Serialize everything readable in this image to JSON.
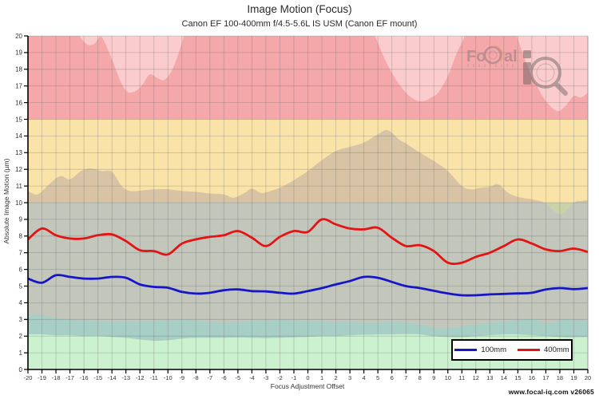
{
  "header": {
    "title": "Image Motion (Focus)",
    "subtitle": "Canon EF 100-400mm f/4.5-5.6L IS USM (Canon EF mount)"
  },
  "footer": {
    "text": "www.focal-iq.com  v26065"
  },
  "watermark": {
    "part1": "Fo",
    "part2": "al",
    "part3": "i"
  },
  "legend": {
    "items": [
      {
        "label": "100mm",
        "color": "#1616c8"
      },
      {
        "label": "400mm",
        "color": "#e51414"
      }
    ]
  },
  "chart_data": {
    "type": "line",
    "title": "Image Motion (Focus)",
    "subtitle": "Canon EF 100-400mm f/4.5-5.6L IS USM (Canon EF mount)",
    "xlabel": "Focus Adjustment Offset",
    "ylabel": "Absolute Image Motion (µm)",
    "xlim": [
      -20,
      20
    ],
    "ylim": [
      0,
      20
    ],
    "grid": true,
    "legend_position": "bottom-right",
    "x": [
      -20,
      -19,
      -18,
      -17,
      -16,
      -15,
      -14,
      -13,
      -12,
      -11,
      -10,
      -9,
      -8,
      -7,
      -6,
      -5,
      -4,
      -3,
      -2,
      -1,
      0,
      1,
      2,
      3,
      4,
      5,
      6,
      7,
      8,
      9,
      10,
      11,
      12,
      13,
      14,
      15,
      16,
      17,
      18,
      19,
      20
    ],
    "series": [
      {
        "name": "100mm",
        "color": "#1616c8",
        "values": [
          5.45,
          5.2,
          5.65,
          5.55,
          5.45,
          5.45,
          5.55,
          5.5,
          5.1,
          4.95,
          4.9,
          4.65,
          4.55,
          4.6,
          4.75,
          4.8,
          4.7,
          4.68,
          4.6,
          4.55,
          4.7,
          4.88,
          5.1,
          5.3,
          5.55,
          5.5,
          5.25,
          5.0,
          4.88,
          4.72,
          4.56,
          4.45,
          4.45,
          4.5,
          4.53,
          4.56,
          4.6,
          4.8,
          4.88,
          4.82,
          4.88
        ]
      },
      {
        "name": "400mm",
        "color": "#e51414",
        "values": [
          7.8,
          8.45,
          8.05,
          7.85,
          7.85,
          8.05,
          8.1,
          7.7,
          7.15,
          7.1,
          6.9,
          7.55,
          7.8,
          7.95,
          8.05,
          8.3,
          7.9,
          7.4,
          7.95,
          8.3,
          8.25,
          9.0,
          8.7,
          8.45,
          8.4,
          8.5,
          7.9,
          7.4,
          7.45,
          7.1,
          6.4,
          6.4,
          6.75,
          7.0,
          7.4,
          7.8,
          7.55,
          7.2,
          7.1,
          7.25,
          7.05
        ]
      }
    ],
    "zones": [
      {
        "label": "red",
        "from": 15,
        "to": 20,
        "base_color": "#fbcccd",
        "shaded_color": "#f5a8aa"
      },
      {
        "label": "yellow",
        "from": 10,
        "to": 15,
        "base_color": "#fae3a8",
        "shaded_color": "#d8c4a4"
      },
      {
        "label": "gray",
        "from": 0,
        "to": 10,
        "base_color": "#c2c6bb",
        "uncovered_color": "#c9d2a8"
      },
      {
        "label": "teal_band",
        "color": "#a8cfc6"
      },
      {
        "label": "green_band",
        "color": "#cbf1cf"
      }
    ],
    "envelopes": {
      "upper_max": [
        [
          -20,
          21
        ],
        [
          -17,
          21
        ],
        [
          -16.3,
          20
        ],
        [
          -15.8,
          19.5
        ],
        [
          -15.3,
          19.5
        ],
        [
          -15,
          19.8
        ],
        [
          -14.7,
          19.9
        ],
        [
          -14,
          18.6
        ],
        [
          -13.4,
          17.3
        ],
        [
          -12.9,
          16.65
        ],
        [
          -12.3,
          16.7
        ],
        [
          -11.8,
          17.1
        ],
        [
          -11.3,
          17.7
        ],
        [
          -10.8,
          17.5
        ],
        [
          -10.3,
          17.35
        ],
        [
          -9.8,
          17.8
        ],
        [
          -9.3,
          18.8
        ],
        [
          -8.9,
          19.9
        ],
        [
          -8.6,
          21
        ],
        [
          4.3,
          21
        ],
        [
          4.8,
          20
        ],
        [
          5.5,
          18.6
        ],
        [
          6.2,
          17.5
        ],
        [
          7,
          16.6
        ],
        [
          7.7,
          16.15
        ],
        [
          8.3,
          16.1
        ],
        [
          8.8,
          16.3
        ],
        [
          9.3,
          16.6
        ],
        [
          10,
          17.6
        ],
        [
          10.6,
          18.9
        ],
        [
          11.2,
          20
        ],
        [
          11.5,
          21
        ],
        [
          14.5,
          21
        ],
        [
          15,
          19.8
        ],
        [
          15.7,
          18.2
        ],
        [
          16.3,
          17.1
        ],
        [
          17,
          16.1
        ],
        [
          17.8,
          15.5
        ],
        [
          18.4,
          15.8
        ],
        [
          19,
          16.4
        ],
        [
          19.5,
          16.3
        ],
        [
          20,
          16.6
        ]
      ],
      "mid_max": [
        [
          -20,
          10.7
        ],
        [
          -19.3,
          10.5
        ],
        [
          -18.5,
          11.1
        ],
        [
          -17.7,
          11.6
        ],
        [
          -17,
          11.4
        ],
        [
          -16.2,
          11.9
        ],
        [
          -15.5,
          12.05
        ],
        [
          -14.7,
          11.9
        ],
        [
          -14,
          11.85
        ],
        [
          -13.3,
          11.0
        ],
        [
          -12.7,
          10.7
        ],
        [
          -12,
          10.72
        ],
        [
          -11,
          10.8
        ],
        [
          -10,
          10.8
        ],
        [
          -9,
          10.7
        ],
        [
          -8,
          10.65
        ],
        [
          -7,
          10.55
        ],
        [
          -6,
          10.5
        ],
        [
          -5.3,
          10.3
        ],
        [
          -4.5,
          10.6
        ],
        [
          -4,
          10.85
        ],
        [
          -3.4,
          10.6
        ],
        [
          -3,
          10.62
        ],
        [
          -2,
          10.9
        ],
        [
          -1,
          11.35
        ],
        [
          0,
          11.9
        ],
        [
          1,
          12.55
        ],
        [
          2,
          13.1
        ],
        [
          3,
          13.35
        ],
        [
          4,
          13.6
        ],
        [
          5,
          14.1
        ],
        [
          5.7,
          14.35
        ],
        [
          6.5,
          13.8
        ],
        [
          7,
          13.55
        ],
        [
          8,
          13.0
        ],
        [
          9,
          12.5
        ],
        [
          10,
          11.9
        ],
        [
          11,
          11.0
        ],
        [
          11.7,
          10.8
        ],
        [
          12.3,
          10.9
        ],
        [
          13,
          10.95
        ],
        [
          13.6,
          11.1
        ],
        [
          14.3,
          10.6
        ],
        [
          15,
          10.35
        ],
        [
          16,
          10.2
        ],
        [
          16.9,
          10.0
        ],
        [
          17.5,
          9.55
        ],
        [
          18.2,
          9.33
        ],
        [
          19,
          10.0
        ],
        [
          19.5,
          10.1
        ],
        [
          20,
          10.15
        ]
      ],
      "low_max": [
        [
          -20,
          3.3
        ],
        [
          -19,
          3.25
        ],
        [
          -18,
          3.1
        ],
        [
          -17,
          3.0
        ],
        [
          -16,
          2.95
        ],
        [
          -15,
          2.9
        ],
        [
          -14,
          2.87
        ],
        [
          -13,
          2.87
        ],
        [
          -12,
          2.9
        ],
        [
          -11,
          2.9
        ],
        [
          -10,
          2.95
        ],
        [
          -9,
          3.0
        ],
        [
          -8,
          2.95
        ],
        [
          -7,
          2.85
        ],
        [
          -6,
          2.8
        ],
        [
          -5,
          2.85
        ],
        [
          -4,
          2.9
        ],
        [
          -3,
          2.95
        ],
        [
          -2,
          3.0
        ],
        [
          -1,
          2.95
        ],
        [
          0,
          2.9
        ],
        [
          1,
          2.9
        ],
        [
          2,
          2.85
        ],
        [
          3,
          2.85
        ],
        [
          4,
          2.8
        ],
        [
          5,
          2.8
        ],
        [
          6,
          2.85
        ],
        [
          7,
          2.8
        ],
        [
          8,
          2.7
        ],
        [
          9,
          2.5
        ],
        [
          9.5,
          2.45
        ],
        [
          10,
          2.5
        ],
        [
          11,
          2.6
        ],
        [
          12,
          2.7
        ],
        [
          13,
          2.8
        ],
        [
          14,
          2.85
        ],
        [
          15,
          2.95
        ],
        [
          15.8,
          3.05
        ],
        [
          16.4,
          2.95
        ],
        [
          16.9,
          2.75
        ],
        [
          17.5,
          2.8
        ],
        [
          18,
          2.95
        ],
        [
          18.5,
          3.05
        ],
        [
          19,
          3.0
        ],
        [
          20,
          2.95
        ]
      ],
      "low_min": [
        [
          -20,
          2.1
        ],
        [
          -19,
          2.1
        ],
        [
          -18,
          2.05
        ],
        [
          -17,
          2.05
        ],
        [
          -16,
          2.0
        ],
        [
          -15,
          2.0
        ],
        [
          -14,
          1.95
        ],
        [
          -13,
          1.9
        ],
        [
          -12,
          1.8
        ],
        [
          -11,
          1.72
        ],
        [
          -10,
          1.75
        ],
        [
          -9,
          1.85
        ],
        [
          -8,
          1.9
        ],
        [
          -7,
          1.9
        ],
        [
          -6,
          1.9
        ],
        [
          -5,
          1.92
        ],
        [
          -4,
          1.9
        ],
        [
          -3,
          1.88
        ],
        [
          -2,
          1.9
        ],
        [
          -1,
          1.93
        ],
        [
          0,
          1.95
        ],
        [
          1,
          2.0
        ],
        [
          2,
          2.0
        ],
        [
          3,
          2.05
        ],
        [
          4,
          2.08
        ],
        [
          5,
          2.1
        ],
        [
          6,
          2.1
        ],
        [
          7,
          2.12
        ],
        [
          8,
          2.1
        ],
        [
          9,
          2.0
        ],
        [
          10,
          1.95
        ],
        [
          11,
          1.95
        ],
        [
          12,
          2.0
        ],
        [
          13,
          2.05
        ],
        [
          14,
          2.1
        ],
        [
          15,
          2.1
        ],
        [
          16,
          2.05
        ],
        [
          17,
          2.0
        ],
        [
          18,
          1.95
        ],
        [
          19,
          1.93
        ],
        [
          20,
          1.95
        ]
      ]
    },
    "x_ticks": [
      -20,
      -19,
      -18,
      -17,
      -16,
      -15,
      -14,
      -13,
      -12,
      -11,
      -10,
      -9,
      -8,
      -7,
      -6,
      -5,
      -4,
      -3,
      -2,
      -1,
      0,
      1,
      2,
      3,
      4,
      5,
      6,
      7,
      8,
      9,
      10,
      11,
      12,
      13,
      14,
      15,
      16,
      17,
      18,
      19,
      20
    ],
    "y_ticks": [
      0,
      1,
      2,
      3,
      4,
      5,
      6,
      7,
      8,
      9,
      10,
      11,
      12,
      13,
      14,
      15,
      16,
      17,
      18,
      19,
      20
    ],
    "colors": {
      "grid": "rgba(95,95,95,0.32)",
      "axis": "#000"
    }
  }
}
